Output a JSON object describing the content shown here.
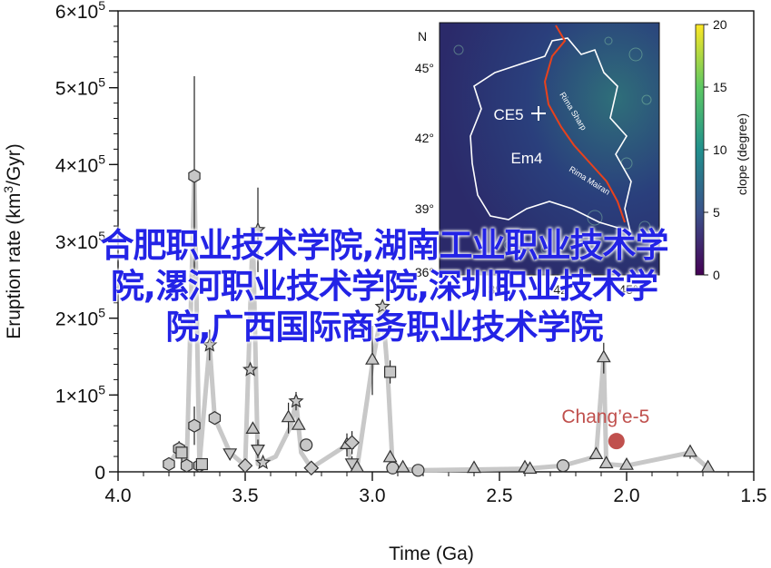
{
  "chart_data": {
    "type": "scatter",
    "xlabel": "Time (Ga)",
    "ylabel_prefix": "Eruption rate (km",
    "ylabel_sup": "3",
    "ylabel_suffix": "/Gyr)",
    "xlim": [
      4.0,
      1.5
    ],
    "ylim": [
      0,
      600000
    ],
    "x_ticks": [
      {
        "value": 4.0,
        "label": "4.0"
      },
      {
        "value": 3.5,
        "label": "3.5"
      },
      {
        "value": 3.0,
        "label": "3.0"
      },
      {
        "value": 2.5,
        "label": "2.5"
      },
      {
        "value": 2.0,
        "label": "2.0"
      },
      {
        "value": 1.5,
        "label": "1.5"
      }
    ],
    "y_ticks": [
      {
        "value": 0,
        "label": "0",
        "exp": ""
      },
      {
        "value": 100000,
        "label": "1×10",
        "exp": "5"
      },
      {
        "value": 200000,
        "label": "2×10",
        "exp": "5"
      },
      {
        "value": 300000,
        "label": "3×10",
        "exp": "5"
      },
      {
        "value": 400000,
        "label": "4×10",
        "exp": "5"
      },
      {
        "value": 500000,
        "label": "5×10",
        "exp": "5"
      },
      {
        "value": 600000,
        "label": "6×10",
        "exp": "5"
      }
    ],
    "trend_line": [
      [
        3.8,
        10000
      ],
      [
        3.76,
        30000
      ],
      [
        3.73,
        8000
      ],
      [
        3.7,
        385000
      ],
      [
        3.68,
        10000
      ],
      [
        3.64,
        165000
      ],
      [
        3.62,
        70000
      ],
      [
        3.56,
        25000
      ],
      [
        3.5,
        8000
      ],
      [
        3.47,
        315000
      ],
      [
        3.45,
        10000
      ],
      [
        3.43,
        12000
      ],
      [
        3.38,
        20000
      ],
      [
        3.32,
        60000
      ],
      [
        3.3,
        92000
      ],
      [
        3.28,
        25000
      ],
      [
        3.24,
        5000
      ],
      [
        3.1,
        35000
      ],
      [
        3.08,
        8000
      ],
      [
        3.06,
        5000
      ],
      [
        3.0,
        140000
      ],
      [
        2.96,
        215000
      ],
      [
        2.94,
        130000
      ],
      [
        2.92,
        5000
      ],
      [
        2.82,
        2000
      ],
      [
        2.6,
        3000
      ],
      [
        2.4,
        4000
      ],
      [
        2.25,
        8000
      ],
      [
        2.12,
        20000
      ],
      [
        2.09,
        150000
      ],
      [
        2.08,
        10000
      ],
      [
        2.0,
        8000
      ],
      [
        1.75,
        25000
      ],
      [
        1.68,
        5000
      ]
    ],
    "points": [
      {
        "x": 3.8,
        "y": 10000,
        "marker": "hexagon"
      },
      {
        "x": 3.76,
        "y": 30000,
        "marker": "hexagon",
        "err": 10000
      },
      {
        "x": 3.75,
        "y": 25000,
        "marker": "square",
        "err": 12000
      },
      {
        "x": 3.73,
        "y": 8000,
        "marker": "hexagon"
      },
      {
        "x": 3.7,
        "y": 385000,
        "marker": "hexagon",
        "err": 130000
      },
      {
        "x": 3.7,
        "y": 60000,
        "marker": "hexagon",
        "err": 25000
      },
      {
        "x": 3.68,
        "y": 8000,
        "marker": "hexagon"
      },
      {
        "x": 3.67,
        "y": 10000,
        "marker": "square"
      },
      {
        "x": 3.64,
        "y": 165000,
        "marker": "star",
        "err": 20000
      },
      {
        "x": 3.62,
        "y": 70000,
        "marker": "hexagon"
      },
      {
        "x": 3.56,
        "y": 25000,
        "marker": "triangle-down"
      },
      {
        "x": 3.5,
        "y": 8000,
        "marker": "diamond"
      },
      {
        "x": 3.48,
        "y": 133000,
        "marker": "star"
      },
      {
        "x": 3.47,
        "y": 55000,
        "marker": "triangle"
      },
      {
        "x": 3.45,
        "y": 315000,
        "marker": "star",
        "err": 55000
      },
      {
        "x": 3.45,
        "y": 30000,
        "marker": "triangle-down",
        "err": 12000
      },
      {
        "x": 3.43,
        "y": 12000,
        "marker": "star"
      },
      {
        "x": 3.33,
        "y": 70000,
        "marker": "triangle",
        "err": 20000
      },
      {
        "x": 3.3,
        "y": 92000,
        "marker": "star",
        "err": 12000
      },
      {
        "x": 3.29,
        "y": 60000,
        "marker": "triangle"
      },
      {
        "x": 3.26,
        "y": 35000,
        "marker": "circle"
      },
      {
        "x": 3.24,
        "y": 5000,
        "marker": "diamond"
      },
      {
        "x": 3.1,
        "y": 35000,
        "marker": "triangle",
        "err": 15000
      },
      {
        "x": 3.08,
        "y": 38000,
        "marker": "diamond",
        "err": 15000
      },
      {
        "x": 3.08,
        "y": 12000,
        "marker": "triangle-down",
        "err": 8000
      },
      {
        "x": 3.06,
        "y": 5000,
        "marker": "triangle"
      },
      {
        "x": 3.0,
        "y": 145000,
        "marker": "triangle",
        "err": 45000
      },
      {
        "x": 2.96,
        "y": 215000,
        "marker": "star"
      },
      {
        "x": 2.93,
        "y": 130000,
        "marker": "square",
        "err": 15000
      },
      {
        "x": 2.93,
        "y": 18000,
        "marker": "triangle"
      },
      {
        "x": 2.92,
        "y": 5000,
        "marker": "circle"
      },
      {
        "x": 2.88,
        "y": 5000,
        "marker": "triangle"
      },
      {
        "x": 2.82,
        "y": 2000,
        "marker": "circle"
      },
      {
        "x": 2.6,
        "y": 4000,
        "marker": "triangle"
      },
      {
        "x": 2.4,
        "y": 5000,
        "marker": "triangle"
      },
      {
        "x": 2.38,
        "y": 3000,
        "marker": "triangle"
      },
      {
        "x": 2.25,
        "y": 8000,
        "marker": "circle"
      },
      {
        "x": 2.12,
        "y": 22000,
        "marker": "triangle"
      },
      {
        "x": 2.09,
        "y": 148000,
        "marker": "triangle",
        "err": 20000
      },
      {
        "x": 2.08,
        "y": 10000,
        "marker": "triangle"
      },
      {
        "x": 2.0,
        "y": 8000,
        "marker": "triangle"
      },
      {
        "x": 1.75,
        "y": 25000,
        "marker": "triangle",
        "err": 8000
      },
      {
        "x": 1.68,
        "y": 5000,
        "marker": "triangle"
      }
    ],
    "highlight": {
      "x": 2.04,
      "y": 40000,
      "label": "Chang’e-5",
      "color": "#c0504d"
    },
    "colors": {
      "trend": "#c8c8c8",
      "marker_fill": "#c7c7c7",
      "marker_edge": "#333333"
    }
  },
  "inset_map": {
    "north_label": "N",
    "lat_labels": [
      "45°",
      "42°",
      "39°",
      "36°"
    ],
    "lon_labels_visible": [
      "39°",
      "42°",
      "45°"
    ],
    "region_labels": [
      "CE5",
      "Em4"
    ],
    "rille_labels": [
      "Rima Sharp",
      "Rima Mairan"
    ],
    "colorbar": {
      "title": "Slope (degree)",
      "title_visible": "clope (degree)",
      "ticks": [
        "20",
        "15",
        "10",
        "5",
        "0"
      ],
      "min": 0,
      "max": 20
    },
    "colors": {
      "background": "#2d2a6b",
      "boundary": "#ffffff",
      "rille": "#e8421c"
    }
  },
  "overlay_text": [
    "合肥职业技术学院,湖南工业职业技术学",
    "院,漯河职业技术学院,深圳职业技术学",
    "院,广西国际商务职业技术学院"
  ]
}
